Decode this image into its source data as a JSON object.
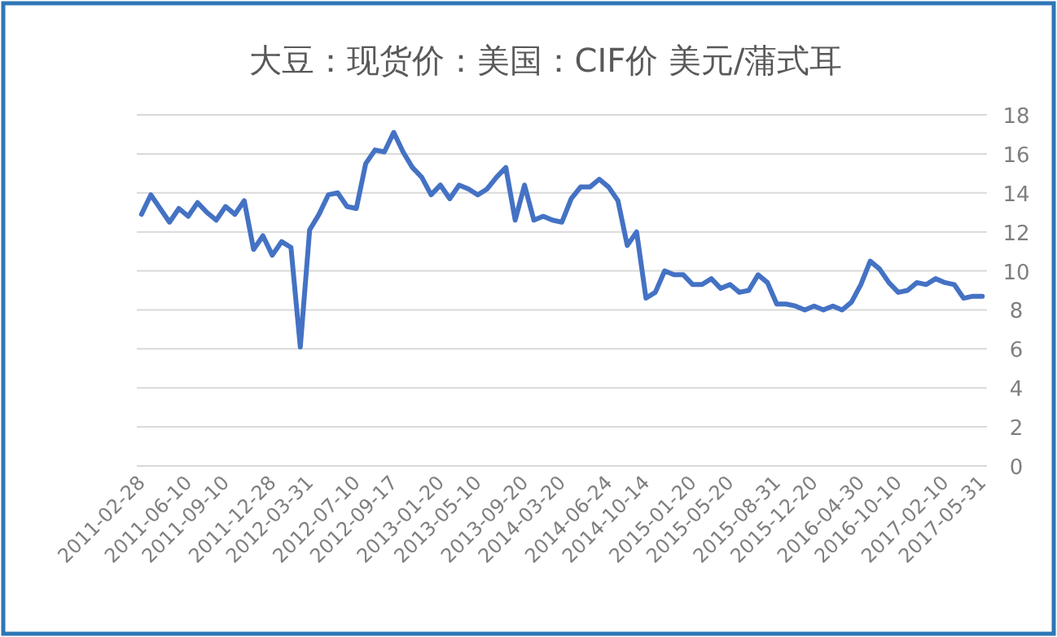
{
  "chart_data": {
    "type": "line",
    "title": "大豆：现货价：美国：CIF价 美元/蒲式耳",
    "categories": [
      "2011-02-28",
      null,
      null,
      null,
      null,
      "2011-06-10",
      null,
      null,
      null,
      "2011-09-10",
      null,
      null,
      null,
      null,
      "2011-12-28",
      null,
      null,
      null,
      "2012-03-31",
      null,
      null,
      null,
      null,
      "2012-07-10",
      null,
      null,
      null,
      "2012-09-17",
      null,
      null,
      null,
      null,
      "2013-01-20",
      null,
      null,
      null,
      "2013-05-10",
      null,
      null,
      null,
      null,
      "2013-09-20",
      null,
      null,
      null,
      "2014-03-20",
      null,
      null,
      null,
      null,
      "2014-06-24",
      null,
      null,
      null,
      "2014-10-14",
      null,
      null,
      null,
      null,
      "2015-01-20",
      null,
      null,
      null,
      "2015-05-20",
      null,
      null,
      null,
      null,
      "2015-08-31",
      null,
      null,
      null,
      "2015-12-20",
      null,
      null,
      null,
      null,
      "2016-04-30",
      null,
      null,
      null,
      "2016-10-10",
      null,
      null,
      null,
      null,
      "2017-02-10",
      null,
      null,
      null,
      "2017-05-31"
    ],
    "values": [
      12.9,
      13.9,
      13.2,
      12.5,
      13.2,
      12.8,
      13.5,
      13.0,
      12.6,
      13.3,
      12.9,
      13.6,
      11.1,
      11.8,
      10.8,
      11.5,
      11.2,
      6.1,
      12.1,
      12.9,
      13.9,
      14.0,
      13.3,
      13.2,
      15.5,
      16.2,
      16.1,
      17.1,
      16.1,
      15.3,
      14.8,
      13.9,
      14.4,
      13.7,
      14.4,
      14.2,
      13.9,
      14.2,
      14.8,
      15.3,
      12.6,
      14.4,
      12.6,
      12.8,
      12.6,
      12.5,
      13.7,
      14.3,
      14.3,
      14.7,
      14.3,
      13.6,
      11.3,
      12.0,
      8.6,
      8.9,
      10.0,
      9.8,
      9.8,
      9.3,
      9.3,
      9.6,
      9.1,
      9.3,
      8.9,
      9.0,
      9.8,
      9.4,
      8.3,
      8.3,
      8.2,
      8.0,
      8.2,
      8.0,
      8.2,
      8.0,
      8.4,
      9.3,
      10.5,
      10.1,
      9.4,
      8.9,
      9.0,
      9.4,
      9.3,
      9.6,
      9.4,
      9.3,
      8.6,
      8.7,
      8.7
    ],
    "color": "#4472c4",
    "ylim": [
      0,
      18
    ],
    "yticks": [
      0,
      2,
      4,
      6,
      8,
      10,
      12,
      14,
      16,
      18
    ],
    "grid": "y",
    "marker": "none",
    "line_style": "solid"
  }
}
